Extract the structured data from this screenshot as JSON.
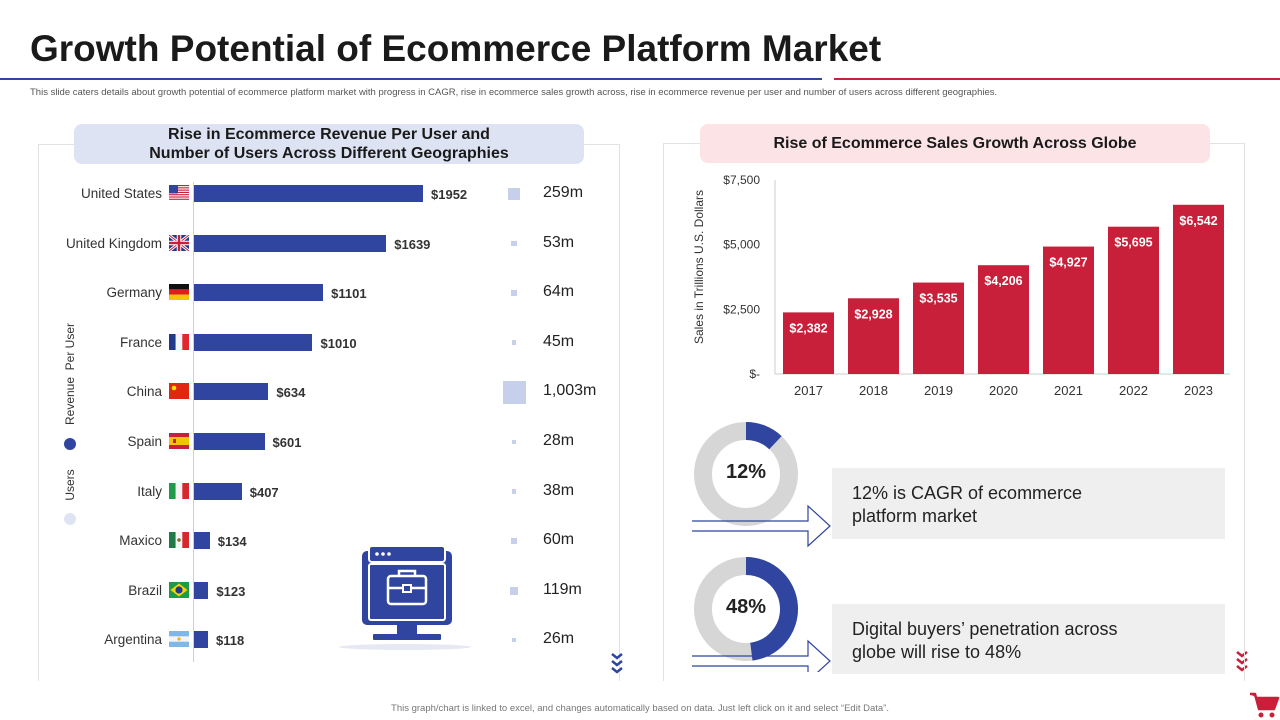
{
  "title": "Growth Potential of Ecommerce Platform Market",
  "subtitle": "This slide caters details about growth potential of ecommerce platform market with progress in CAGR, rise in ecommerce sales growth across, rise in ecommerce revenue per user and number of users across different geographies.",
  "footer": "This graph/chart is linked to excel, and changes automatically based on data. Just left click on it and select “Edit Data”.",
  "colors": {
    "blue": "#2f45a0",
    "red": "#c8203a",
    "light_blue": "#c6d0ea",
    "gray_ring": "#d6d6d6"
  },
  "left_panel": {
    "heading_line1": "Rise in Ecommerce Revenue Per User and",
    "heading_line2": "Number of Users Across Different Geographies",
    "legend_revenue": "Revenue  Per User",
    "legend_users": "Users"
  },
  "right_panel": {
    "heading": "Rise of Ecommerce Sales Growth Across Globe"
  },
  "kpis": [
    {
      "value_label": "12%",
      "fraction": 0.12,
      "text_line1": "12% is CAGR of ecommerce",
      "text_line2": "platform market"
    },
    {
      "value_label": "48%",
      "fraction": 0.48,
      "text_line1": "Digital buyers’ penetration across",
      "text_line2": "globe will rise to 48%"
    }
  ],
  "chart_data": [
    {
      "type": "bar",
      "orientation": "horizontal",
      "categories": [
        "United States",
        "United Kingdom",
        "Germany",
        "France",
        "China",
        "Spain",
        "Italy",
        "Maxico",
        "Brazil",
        "Argentina"
      ],
      "series": [
        {
          "name": "Revenue  Per User",
          "values": [
            1952,
            1639,
            1101,
            1010,
            634,
            601,
            407,
            134,
            123,
            118
          ],
          "labels": [
            "$1952",
            "$1639",
            "$1101",
            "$1010",
            "$634",
            "$601",
            "$407",
            "$134",
            "$123",
            "$118"
          ]
        },
        {
          "name": "Users",
          "values": [
            259,
            53,
            64,
            45,
            1003,
            28,
            38,
            60,
            119,
            26
          ],
          "labels": [
            "259m",
            "53m",
            "64m",
            "45m",
            "1,003m",
            "28m",
            "38m",
            "60m",
            "119m",
            "26m"
          ]
        }
      ]
    },
    {
      "type": "bar",
      "categories": [
        "2017",
        "2018",
        "2019",
        "2020",
        "2021",
        "2022",
        "2023"
      ],
      "values": [
        2382,
        2928,
        3535,
        4206,
        4927,
        5695,
        6542
      ],
      "labels": [
        "$2,382",
        "$2,928",
        "$3,535",
        "$4,206",
        "$4,927",
        "$5,695",
        "$6,542"
      ],
      "ylabel": "Sales in Trillions U.S. Dollars",
      "ylim": [
        0,
        7500
      ],
      "yticks": [
        "$-",
        "$2,500",
        "$5,000",
        "$7,500"
      ],
      "grid": false
    }
  ]
}
